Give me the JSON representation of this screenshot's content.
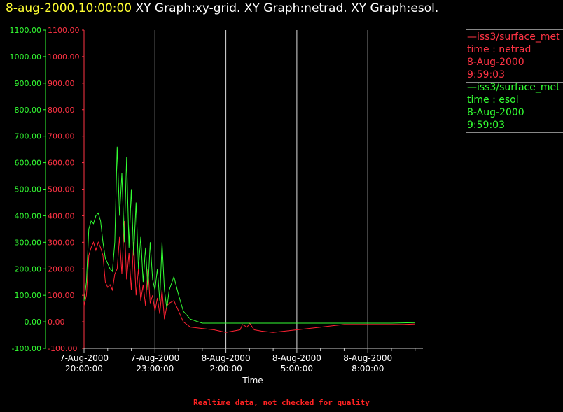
{
  "header": {
    "timestamp": "8-aug-2000,10:00:00",
    "titles": "XY Graph:xy-grid.  XY Graph:netrad.  XY Graph:esol."
  },
  "legend": [
    {
      "line1": "—iss3/surface_met",
      "line2": "time : netrad",
      "line3": "8-Aug-2000",
      "line4": "9:59:03",
      "color": "#ff3344"
    },
    {
      "line1": "—iss3/surface_met",
      "line2": "time : esol",
      "line3": "8-Aug-2000",
      "line4": "9:59:03",
      "color": "#33ff33"
    }
  ],
  "footer": {
    "note": "Realtime data, not checked for quality"
  },
  "chart_data": {
    "type": "line",
    "xlabel": "Time",
    "x_range_hours": [
      -0.2,
      14.3
    ],
    "ylim": [
      -100,
      1100
    ],
    "y_ticks": [
      -100,
      0,
      100,
      200,
      300,
      400,
      500,
      600,
      700,
      800,
      900,
      1000,
      1100
    ],
    "y_tick_labels": [
      "-100.00",
      "0.00",
      "100.00",
      "200.00",
      "300.00",
      "400.00",
      "500.00",
      "600.00",
      "700.00",
      "800.00",
      "900.00",
      "1000.00",
      "1100.00"
    ],
    "x_ticks": [
      {
        "h": 0,
        "date": "7-Aug-2000",
        "time": "20:00:00"
      },
      {
        "h": 3,
        "date": "7-Aug-2000",
        "time": "23:00:00"
      },
      {
        "h": 6,
        "date": "8-Aug-2000",
        "time": "2:00:00"
      },
      {
        "h": 9,
        "date": "8-Aug-2000",
        "time": "5:00:00"
      },
      {
        "h": 12,
        "date": "8-Aug-2000",
        "time": "8:00:00"
      }
    ],
    "grid_hours": [
      3,
      6,
      9,
      12
    ],
    "series": [
      {
        "name": "netrad",
        "color": "#ff2233",
        "points": [
          [
            0,
            60
          ],
          [
            0.1,
            100
          ],
          [
            0.2,
            250
          ],
          [
            0.3,
            280
          ],
          [
            0.4,
            300
          ],
          [
            0.5,
            270
          ],
          [
            0.6,
            300
          ],
          [
            0.7,
            280
          ],
          [
            0.8,
            250
          ],
          [
            0.9,
            150
          ],
          [
            1.0,
            130
          ],
          [
            1.1,
            140
          ],
          [
            1.2,
            120
          ],
          [
            1.3,
            180
          ],
          [
            1.4,
            200
          ],
          [
            1.5,
            320
          ],
          [
            1.6,
            180
          ],
          [
            1.7,
            380
          ],
          [
            1.8,
            160
          ],
          [
            1.9,
            260
          ],
          [
            2.0,
            120
          ],
          [
            2.1,
            300
          ],
          [
            2.2,
            100
          ],
          [
            2.3,
            200
          ],
          [
            2.4,
            80
          ],
          [
            2.5,
            140
          ],
          [
            2.6,
            60
          ],
          [
            2.7,
            200
          ],
          [
            2.8,
            70
          ],
          [
            2.9,
            100
          ],
          [
            3.0,
            40
          ],
          [
            3.1,
            90
          ],
          [
            3.2,
            30
          ],
          [
            3.3,
            120
          ],
          [
            3.4,
            10
          ],
          [
            3.5,
            60
          ],
          [
            3.6,
            70
          ],
          [
            3.8,
            80
          ],
          [
            3.9,
            60
          ],
          [
            4.0,
            40
          ],
          [
            4.2,
            0
          ],
          [
            4.5,
            -20
          ],
          [
            5.0,
            -25
          ],
          [
            5.5,
            -30
          ],
          [
            6.0,
            -40
          ],
          [
            6.3,
            -35
          ],
          [
            6.6,
            -30
          ],
          [
            6.7,
            -10
          ],
          [
            6.9,
            -20
          ],
          [
            7.0,
            -5
          ],
          [
            7.2,
            -30
          ],
          [
            7.5,
            -35
          ],
          [
            8.0,
            -40
          ],
          [
            8.5,
            -35
          ],
          [
            9.0,
            -30
          ],
          [
            9.5,
            -25
          ],
          [
            10.0,
            -20
          ],
          [
            10.5,
            -15
          ],
          [
            11.0,
            -10
          ],
          [
            11.5,
            -10
          ],
          [
            12.0,
            -10
          ],
          [
            12.5,
            -10
          ],
          [
            13.0,
            -10
          ],
          [
            13.5,
            -10
          ],
          [
            14.0,
            -8
          ]
        ]
      },
      {
        "name": "esol",
        "color": "#33ff33",
        "points": [
          [
            0,
            80
          ],
          [
            0.1,
            150
          ],
          [
            0.2,
            350
          ],
          [
            0.3,
            380
          ],
          [
            0.4,
            370
          ],
          [
            0.5,
            400
          ],
          [
            0.6,
            410
          ],
          [
            0.7,
            380
          ],
          [
            0.8,
            300
          ],
          [
            0.9,
            240
          ],
          [
            1.0,
            220
          ],
          [
            1.1,
            200
          ],
          [
            1.2,
            190
          ],
          [
            1.3,
            300
          ],
          [
            1.4,
            660
          ],
          [
            1.5,
            400
          ],
          [
            1.6,
            560
          ],
          [
            1.7,
            300
          ],
          [
            1.8,
            620
          ],
          [
            1.9,
            280
          ],
          [
            2.0,
            500
          ],
          [
            2.1,
            250
          ],
          [
            2.2,
            450
          ],
          [
            2.3,
            200
          ],
          [
            2.4,
            320
          ],
          [
            2.5,
            150
          ],
          [
            2.6,
            280
          ],
          [
            2.7,
            120
          ],
          [
            2.8,
            300
          ],
          [
            2.9,
            160
          ],
          [
            3.0,
            120
          ],
          [
            3.1,
            200
          ],
          [
            3.2,
            80
          ],
          [
            3.3,
            300
          ],
          [
            3.4,
            120
          ],
          [
            3.5,
            50
          ],
          [
            3.6,
            120
          ],
          [
            3.8,
            170
          ],
          [
            4.0,
            100
          ],
          [
            4.2,
            40
          ],
          [
            4.5,
            10
          ],
          [
            5.0,
            -5
          ],
          [
            6.0,
            -5
          ],
          [
            7.0,
            -5
          ],
          [
            8.0,
            -5
          ],
          [
            9.0,
            -5
          ],
          [
            10.0,
            -5
          ],
          [
            11.0,
            -5
          ],
          [
            12.0,
            -5
          ],
          [
            13.0,
            -5
          ],
          [
            14.0,
            -3
          ]
        ]
      }
    ]
  }
}
